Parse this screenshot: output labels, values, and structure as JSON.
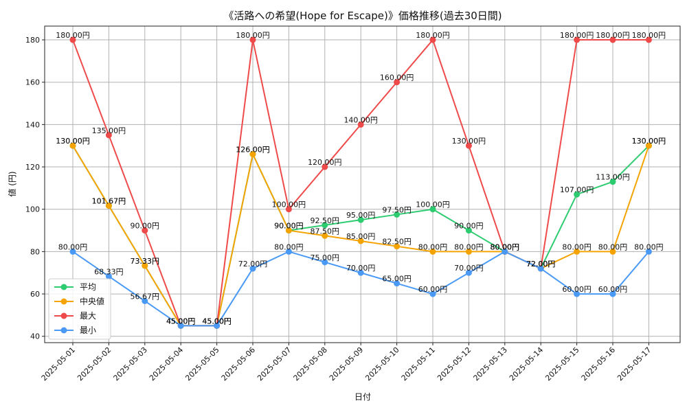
{
  "chart_data": {
    "type": "line",
    "title": "《活路への希望(Hope for Escape)》価格推移(過去30日間)",
    "xlabel": "日付",
    "ylabel": "値 (円)",
    "ylim": [
      37,
      186.5
    ],
    "yticks": [
      40,
      60,
      80,
      100,
      120,
      140,
      160,
      180
    ],
    "grid": true,
    "legend_position": "lower-left",
    "value_suffix": "円",
    "categories": [
      "2025-05-01",
      "2025-05-02",
      "2025-05-03",
      "2025-05-04",
      "2025-05-05",
      "2025-05-06",
      "2025-05-07",
      "2025-05-08",
      "2025-05-09",
      "2025-05-10",
      "2025-05-11",
      "2025-05-12",
      "2025-05-13",
      "2025-05-14",
      "2025-05-15",
      "2025-05-16",
      "2025-05-17"
    ],
    "series": [
      {
        "name": "平均",
        "color": "#2ecc71",
        "values": [
          130,
          101.67,
          73.33,
          45,
          45,
          126,
          90,
          92.5,
          95,
          97.5,
          100,
          90,
          80,
          72,
          107,
          113,
          130
        ]
      },
      {
        "name": "中央値",
        "color": "#f5a300",
        "values": [
          130,
          101.67,
          73.33,
          45,
          45,
          126,
          90,
          87.5,
          85,
          82.5,
          80,
          80,
          80,
          72,
          80,
          80,
          130
        ]
      },
      {
        "name": "最大",
        "color": "#ef4a4a",
        "values": [
          180,
          135,
          90,
          45,
          45,
          180,
          100,
          120,
          140,
          160,
          180,
          130,
          80,
          72,
          180,
          180,
          180
        ]
      },
      {
        "name": "最小",
        "color": "#4a9af5",
        "values": [
          80,
          68.33,
          56.67,
          45,
          45,
          72,
          80,
          75,
          70,
          65,
          60,
          70,
          80,
          72,
          60,
          60,
          80
        ]
      }
    ]
  }
}
